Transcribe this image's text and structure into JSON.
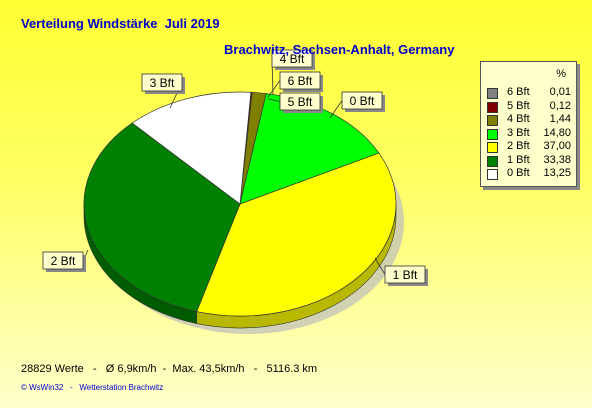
{
  "chart_data": {
    "type": "pie",
    "title": "Verteilung Windstärke  Juli 2019",
    "subtitle": "Brachwitz, Sachsen-Anhalt, Germany",
    "legend_header": "%",
    "legend_position": "top-right",
    "slices": [
      {
        "label": "6 Bft",
        "value": 0.01,
        "value_text": "0,01",
        "color": "#808080"
      },
      {
        "label": "5 Bft",
        "value": 0.12,
        "value_text": "0,12",
        "color": "#800000"
      },
      {
        "label": "4 Bft",
        "value": 1.44,
        "value_text": "1,44",
        "color": "#808000"
      },
      {
        "label": "3 Bft",
        "value": 14.8,
        "value_text": "14,80",
        "color": "#00ff00"
      },
      {
        "label": "2 Bft",
        "value": 37.0,
        "value_text": "37,00",
        "color": "#ffff00"
      },
      {
        "label": "1 Bft",
        "value": 33.38,
        "value_text": "33,38",
        "color": "#008000"
      },
      {
        "label": "0 Bft",
        "value": 13.25,
        "value_text": "13,25",
        "color": "#ffffff"
      }
    ]
  },
  "stats_line": "28829 Werte   -   Ø 6,9km/h  -  Max. 43,5km/h   -   5116.3 km",
  "footer": "© WsWin32   -   Wetterstation Brachwitz"
}
